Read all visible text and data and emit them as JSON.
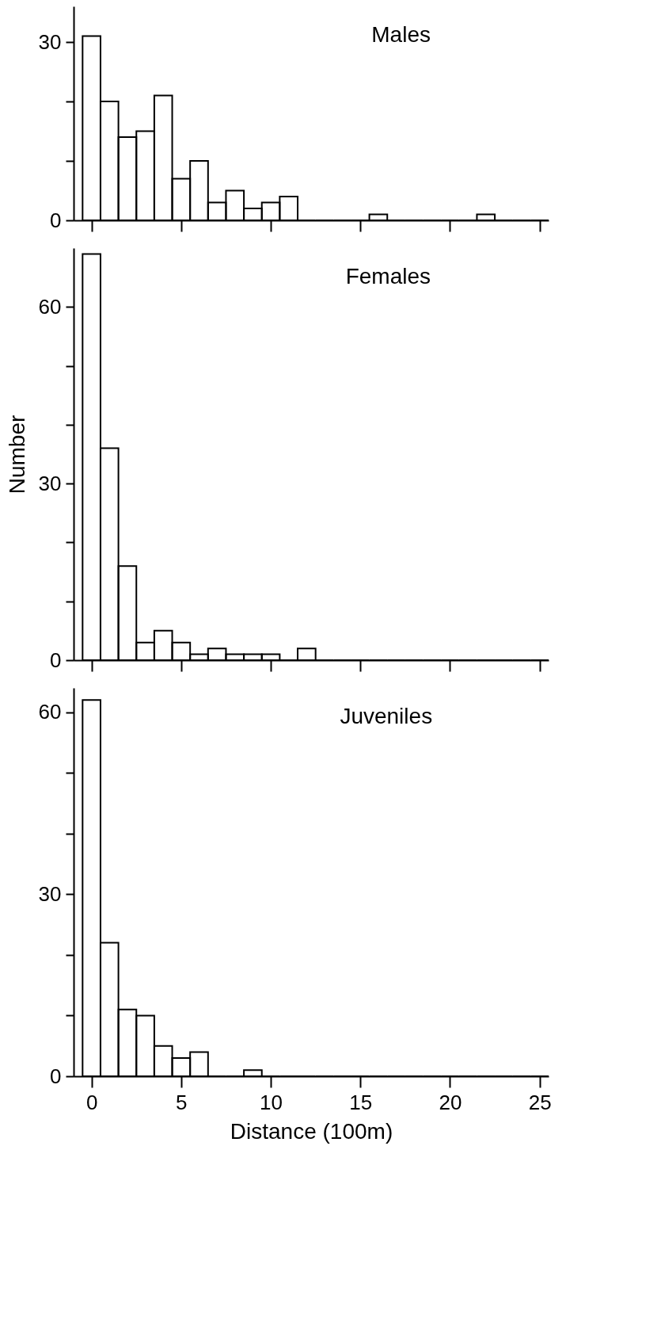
{
  "chart_data": [
    {
      "type": "histogram",
      "title": "Males",
      "color": "#000000",
      "bins": [
        -0.5,
        0.5,
        1.5,
        2.5,
        3.5,
        4.5,
        5.5,
        6.5,
        7.5,
        8.5,
        9.5,
        10.5,
        11.5,
        12.5,
        13.5,
        14.5,
        15.5,
        16.5,
        17.5,
        18.5,
        19.5,
        20.5,
        21.5,
        22.5,
        23.5,
        24.5,
        25.5
      ],
      "values": [
        31,
        20,
        14,
        15,
        21,
        7,
        10,
        3,
        5,
        2,
        3,
        4,
        0,
        0,
        0,
        0,
        1,
        0,
        0,
        0,
        0,
        0,
        1,
        0,
        0,
        0
      ],
      "xlim": [
        -1,
        25.5
      ],
      "xticks": [
        0,
        5,
        10,
        15,
        20,
        25
      ],
      "ylim": [
        0,
        36
      ],
      "yticks": [
        0,
        {
          "value": 10,
          "label": null
        },
        {
          "value": 20,
          "label": null
        },
        30
      ],
      "tick_labels": "y",
      "grid": false
    },
    {
      "type": "histogram",
      "title": "Females",
      "ylabel": "Number",
      "color": "#000000",
      "bins": [
        -0.5,
        0.5,
        1.5,
        2.5,
        3.5,
        4.5,
        5.5,
        6.5,
        7.5,
        8.5,
        9.5,
        10.5,
        11.5,
        12.5,
        13.5,
        14.5,
        15.5,
        16.5,
        17.5,
        18.5,
        19.5,
        20.5,
        21.5,
        22.5,
        23.5,
        24.5,
        25.5
      ],
      "values": [
        69,
        36,
        16,
        3,
        5,
        3,
        1,
        2,
        1,
        1,
        1,
        0,
        2,
        0,
        0,
        0,
        0,
        0,
        0,
        0,
        0,
        0,
        0,
        0,
        0,
        0
      ],
      "xlim": [
        -1,
        25.5
      ],
      "xticks": [
        0,
        5,
        10,
        15,
        20,
        25
      ],
      "ylim": [
        0,
        70
      ],
      "yticks": [
        0,
        {
          "value": 10,
          "label": null
        },
        {
          "value": 20,
          "label": null
        },
        30,
        {
          "value": 40,
          "label": null
        },
        {
          "value": 50,
          "label": null
        },
        60
      ],
      "tick_labels": "y",
      "grid": false
    },
    {
      "type": "histogram",
      "title": "Juveniles",
      "xlabel": "Distance (100m)",
      "color": "#000000",
      "bins": [
        -0.5,
        0.5,
        1.5,
        2.5,
        3.5,
        4.5,
        5.5,
        6.5,
        7.5,
        8.5,
        9.5,
        10.5,
        11.5,
        12.5,
        13.5,
        14.5,
        15.5,
        16.5,
        17.5,
        18.5,
        19.5,
        20.5,
        21.5,
        22.5,
        23.5,
        24.5,
        25.5
      ],
      "values": [
        62,
        22,
        11,
        10,
        5,
        3,
        4,
        0,
        0,
        1,
        0,
        0,
        0,
        0,
        0,
        0,
        0,
        0,
        0,
        0,
        0,
        0,
        0,
        0,
        0,
        0
      ],
      "xlim": [
        -1,
        25.5
      ],
      "xticks": [
        0,
        5,
        10,
        15,
        20,
        25
      ],
      "ylim": [
        0,
        64
      ],
      "yticks": [
        0,
        {
          "value": 10,
          "label": null
        },
        {
          "value": 20,
          "label": null
        },
        30,
        {
          "value": 40,
          "label": null
        },
        {
          "value": 50,
          "label": null
        },
        60
      ],
      "grid": false
    }
  ]
}
